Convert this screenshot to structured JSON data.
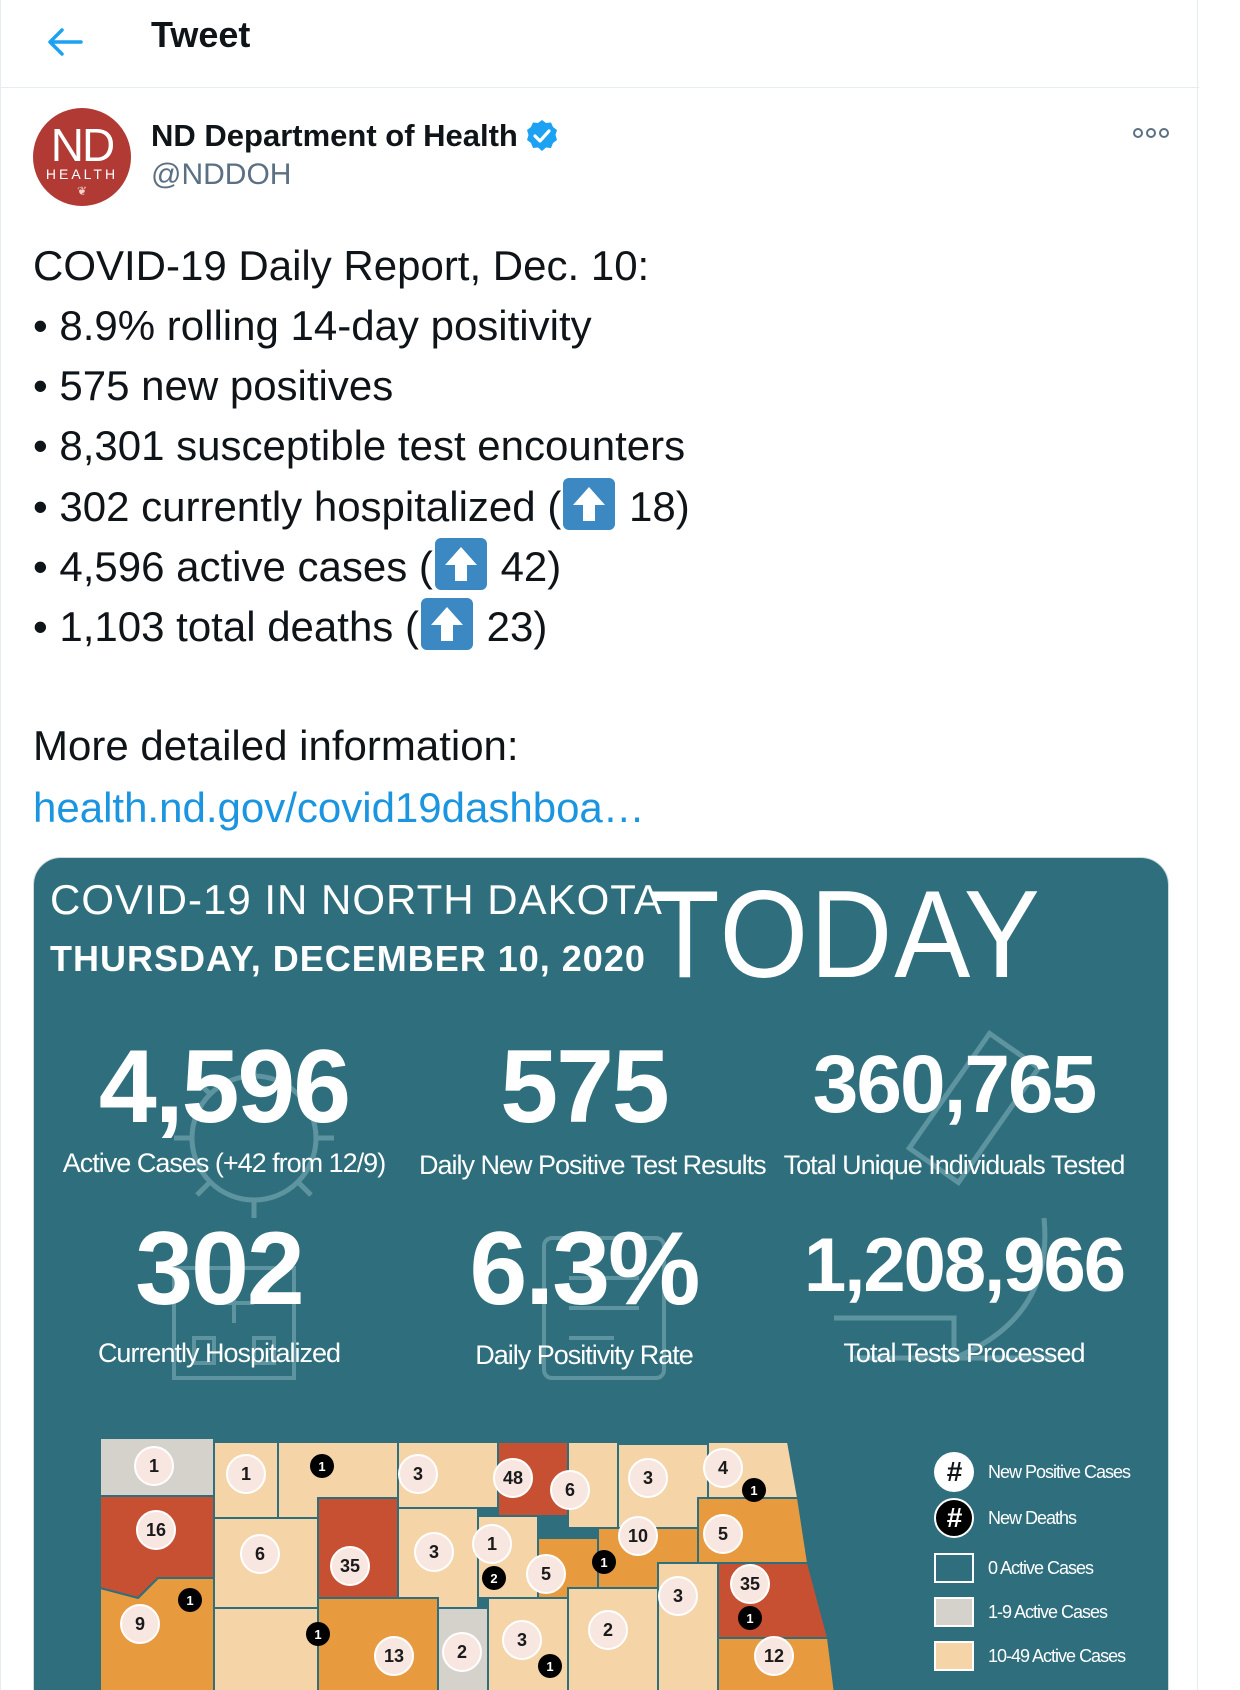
{
  "header": {
    "title": "Tweet"
  },
  "author": {
    "name": "ND Department of Health",
    "handle": "@NDDOH",
    "avatar_text": "ND",
    "avatar_subtext": "HEALTH"
  },
  "tweet": {
    "line1": "COVID-19 Daily Report, Dec. 10:",
    "b1": "• 8.9% rolling 14-day positivity",
    "b2": "• 575 new positives",
    "b3": "• 8,301 susceptible test encounters",
    "b4_pre": "• 302 currently hospitalized (",
    "b4_post": " 18)",
    "b5_pre": "• 4,596 active cases (",
    "b5_post": " 42)",
    "b6_pre": "• 1,103 total deaths (",
    "b6_post": " 23)",
    "more": "More detailed information:",
    "link": "health.nd.gov/covid19dashboa…"
  },
  "infographic": {
    "title1": "COVID-19 IN NORTH DAKOTA",
    "title2": "THURSDAY, DECEMBER 10, 2020",
    "today": "TODAY",
    "stats": [
      {
        "value": "4,596",
        "caption": "Active Cases (+42 from 12/9)"
      },
      {
        "value": "575",
        "caption": "Daily New Positive Test Results"
      },
      {
        "value": "360,765",
        "caption": "Total Unique Individuals Tested"
      },
      {
        "value": "302",
        "caption": "Currently Hospitalized"
      },
      {
        "value": "6.3%",
        "caption": "Daily Positivity Rate"
      },
      {
        "value": "1,208,966",
        "caption": "Total Tests Processed"
      }
    ],
    "legend": {
      "new_positive": "New Positive Cases",
      "new_deaths": "New Deaths",
      "zero_active": "0 Active Cases",
      "one_nine": "1-9 Active Cases",
      "ten_fortynine": "10-49 Active Cases",
      "hash": "#"
    },
    "map_positive_labels": [
      "1",
      "1",
      "3",
      "48",
      "6",
      "3",
      "4",
      "16",
      "6",
      "35",
      "3",
      "1",
      "10",
      "5",
      "9",
      "5",
      "3",
      "35",
      "13",
      "2",
      "3",
      "2",
      "12"
    ],
    "map_death_labels": [
      "1",
      "1",
      "1",
      "2",
      "1",
      "1",
      "1",
      "1"
    ],
    "colors": {
      "card_bg": "#2f6f7d",
      "zero": "#ffffff",
      "one_nine": "#d5d2cc",
      "ten_fortynine": "#f5d4a8",
      "fifty_plus": "#e89a3f",
      "high": "#c75033",
      "link": "#1b95e0",
      "verified": "#1da1f2"
    }
  }
}
